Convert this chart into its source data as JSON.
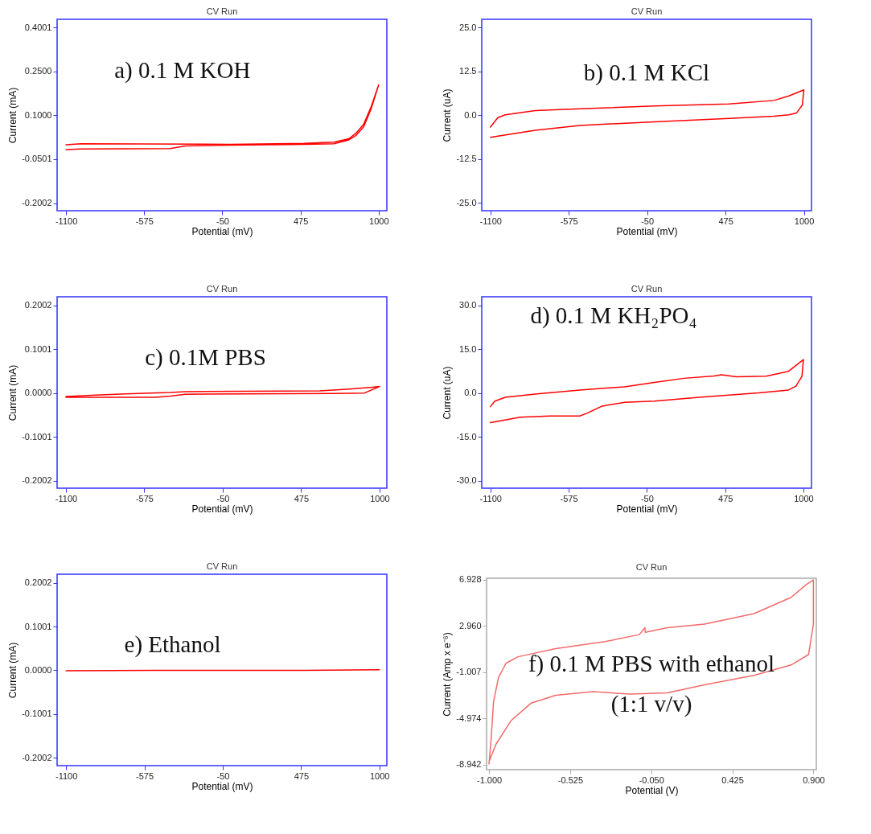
{
  "chart_data": [
    {
      "type": "line",
      "title": "CV Run",
      "xlabel": "Potential (mV)",
      "ylabel": "Current (mA)",
      "annotations": [
        "a) 0.1 M KOH"
      ],
      "xlim": [
        -1160,
        1055
      ],
      "ylim": [
        -0.226,
        0.428
      ],
      "xticks": [
        -1100,
        -575,
        -50,
        475,
        1000
      ],
      "yticks": [
        0.4001,
        {
          "value": 0.25,
          "label": "0.2500"
        },
        {
          "value": 0.1,
          "label": "0.1000"
        },
        -0.0501,
        -0.2002
      ],
      "series": [
        {
          "color": "#ff0000",
          "x": [
            -1100,
            -1000,
            -400,
            -300,
            0,
            500,
            700,
            800,
            850,
            900,
            950,
            1000,
            950,
            900,
            850,
            800,
            700,
            500,
            0,
            -1000,
            -1100
          ],
          "values": [
            -0.017,
            -0.015,
            -0.014,
            -0.005,
            -0.002,
            0.001,
            0.003,
            0.016,
            0.032,
            0.061,
            0.123,
            0.204,
            0.13,
            0.07,
            0.04,
            0.02,
            0.008,
            0.004,
            0.001,
            0.003,
            -0.001
          ]
        }
      ]
    },
    {
      "type": "line",
      "title": "CV Run",
      "xlabel": "Potential (mV)",
      "ylabel": "Current (uA)",
      "annotations": [
        "b) 0.1 M KCl"
      ],
      "xlim": [
        -1158,
        1051
      ],
      "ylim": [
        -27.2,
        27.3
      ],
      "xticks": [
        -1100,
        -575,
        -50,
        475,
        1000
      ],
      "yticks": [
        {
          "value": 25,
          "label": "25.0"
        },
        12.5,
        {
          "value": 0,
          "label": "0.0"
        },
        -12.5,
        {
          "value": -25,
          "label": "-25.0"
        }
      ],
      "series": [
        {
          "color": "#ff0000",
          "x": [
            -1100,
            -1050,
            -1000,
            -800,
            -500,
            0,
            500,
            800,
            900,
            1000,
            990,
            950,
            900,
            800,
            500,
            0,
            -500,
            -800,
            -1100
          ],
          "values": [
            -3.4,
            -0.7,
            0.1,
            1.3,
            1.8,
            2.6,
            3.2,
            4.2,
            5.5,
            7.2,
            2.9,
            0.6,
            0.1,
            -0.3,
            -0.9,
            -1.9,
            -2.9,
            -4.3,
            -6.3
          ]
        }
      ]
    },
    {
      "type": "line",
      "title": "CV Run",
      "xlabel": "Potential (mV)",
      "ylabel": "Current (mA)",
      "annotations": [
        "c) 0.1M PBS"
      ],
      "xlim": [
        -1159,
        1049
      ],
      "ylim": [
        -0.2176,
        0.22
      ],
      "xticks": [
        -1100,
        -575,
        -50,
        475,
        1000
      ],
      "yticks": [
        0.2002,
        0.1001,
        {
          "value": 0,
          "label": "0.0000"
        },
        -0.1001,
        -0.2002
      ],
      "series": [
        {
          "color": "#ff0000",
          "x": [
            -1100,
            -500,
            -400,
            -300,
            100,
            700,
            900,
            1000,
            950,
            800,
            600,
            -300,
            -400,
            -700,
            -900,
            -1100
          ],
          "values": [
            -0.01,
            -0.01,
            -0.007,
            -0.003,
            -0.002,
            -0.001,
            0.0,
            0.015,
            0.013,
            0.009,
            0.005,
            0.003,
            0.001,
            -0.002,
            -0.005,
            -0.008
          ]
        }
      ]
    },
    {
      "type": "line",
      "title": "CV Run",
      "xlabel": "Potential (mV)",
      "ylabel": "Current (uA)",
      "annotations": [
        "d) 0.1 M KH₂PO₄"
      ],
      "xlim": [
        -1158,
        1054
      ],
      "ylim": [
        -32.6,
        32.9
      ],
      "xticks": [
        -1100,
        -575,
        -50,
        475,
        1000
      ],
      "yticks": [
        {
          "value": 30,
          "label": "30.0"
        },
        {
          "value": 15,
          "label": "15.0"
        },
        {
          "value": 0,
          "label": "0.0"
        },
        {
          "value": -15,
          "label": "-15.0"
        },
        {
          "value": -30,
          "label": "-30.0"
        }
      ],
      "series": [
        {
          "color": "#ff0000",
          "x": [
            -1100,
            -1070,
            -1000,
            -800,
            -500,
            -200,
            0,
            200,
            400,
            450,
            550,
            750,
            900,
            1000,
            990,
            950,
            900,
            700,
            300,
            0,
            -200,
            -350,
            -450,
            -500,
            -700,
            -900,
            -1100
          ],
          "values": [
            -4.7,
            -2.8,
            -1.5,
            -0.4,
            1.0,
            2.1,
            3.6,
            5.0,
            5.8,
            6.2,
            5.5,
            5.7,
            7.4,
            11.4,
            5.7,
            2.3,
            1.0,
            0,
            -1.5,
            -2.8,
            -3.2,
            -4.5,
            -6.9,
            -7.9,
            -7.9,
            -8.3,
            -10.2
          ]
        }
      ]
    },
    {
      "type": "line",
      "title": "CV Run",
      "xlabel": "Potential (mV)",
      "ylabel": "Current (mA)",
      "annotations": [
        "e) Ethanol"
      ],
      "xlim": [
        -1160,
        1050
      ],
      "ylim": [
        -0.2183,
        0.2198
      ],
      "xticks": [
        -1100,
        -575,
        -50,
        475,
        1000
      ],
      "yticks": [
        0.2002,
        0.1001,
        {
          "value": 0,
          "label": "0.0000"
        },
        -0.1001,
        -0.2002
      ],
      "series": [
        {
          "color": "#ff0000",
          "x": [
            -1100,
            -500,
            0,
            500,
            1000
          ],
          "values": [
            -0.001,
            0,
            0,
            0,
            0.001
          ]
        }
      ]
    },
    {
      "type": "line",
      "title": "CV Run",
      "xlabel": "Potential (V)",
      "ylabel": "Current (Amp x e⁻⁶)",
      "annotations": [
        "f) 0.1 M PBS with ethanol",
        "(1:1 v/v)"
      ],
      "xlim": [
        -1.0145,
        0.917
      ],
      "ylim": [
        -9.39,
        7.04
      ],
      "xticks": [
        {
          "value": -1,
          "label": "-1.000"
        },
        {
          "value": -0.525,
          "label": "-0.525"
        },
        {
          "value": -0.05,
          "label": "-0.050"
        },
        {
          "value": 0.425,
          "label": "0.425"
        },
        {
          "value": 0.9,
          "label": "0.900"
        }
      ],
      "yticks": [
        6.928,
        {
          "value": 2.96,
          "label": "2.960"
        },
        -1.007,
        -4.974,
        -8.942
      ],
      "series": [
        {
          "color": "#f26b6b",
          "x": [
            -1.0,
            -0.988,
            -0.974,
            -0.945,
            -0.901,
            -0.83,
            -0.61,
            -0.32,
            -0.12,
            -0.087,
            -0.085,
            0.044,
            0.262,
            0.552,
            0.77,
            0.858,
            0.9,
            0.9,
            0.872,
            0.77,
            0.552,
            0.262,
            0.044,
            -0.174,
            -0.39,
            -0.61,
            -0.756,
            -0.872,
            -0.959,
            -1.0
          ],
          "values": [
            -8.9,
            -6.8,
            -3.6,
            -1.5,
            -0.26,
            0.3,
            1.0,
            1.6,
            2.2,
            2.8,
            2.4,
            2.8,
            3.1,
            4.0,
            5.4,
            6.5,
            6.9,
            3.1,
            0.5,
            -0.4,
            -1.3,
            -2.1,
            -2.8,
            -2.9,
            -2.7,
            -3.0,
            -3.7,
            -5.2,
            -7.2,
            -8.7
          ]
        }
      ]
    }
  ]
}
